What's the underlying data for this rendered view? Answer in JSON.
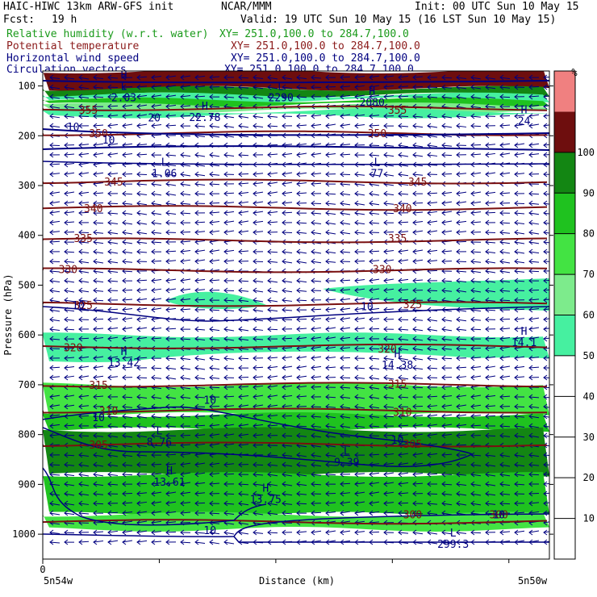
{
  "header": {
    "model": "HAIC-HIWC 13km ARW-GFS init",
    "org": "NCAR/MMM",
    "init": "Init: 00 UTC Sun 10 May 15",
    "fcst_label": "Fcst:",
    "fcst_value": "19 h",
    "valid": "Valid: 19 UTC Sun 10 May 15 (16 LST Sun 10 May 15)",
    "fields": [
      {
        "name": "Relative humidity (w.r.t. water)",
        "xy": "XY= 251.0,100.0 to 284.7,100.0",
        "color": "#1a9a1a"
      },
      {
        "name": "Potential temperature",
        "xy": "XY= 251.0,100.0 to 284.7,100.0",
        "color": "#8b1a1a"
      },
      {
        "name": "Horizontal wind speed",
        "xy": "XY= 251.0,100.0 to 284.7,100.0",
        "color": "#000080"
      },
      {
        "name": "Circulation vectors",
        "xy": "XY= 251.0,100.0 to 284.7,100.0",
        "color": "#000080"
      }
    ]
  },
  "chart_data": {
    "type": "heatmap",
    "xlabel": "Distance (km)",
    "ylabel": "Pressure (hPa)",
    "x_tick_label": "0",
    "x_left_label": "5n54w",
    "x_right_label": "5n50w",
    "y_ticks": [
      100,
      200,
      300,
      400,
      500,
      600,
      700,
      800,
      900,
      1000
    ],
    "ylim": [
      1050,
      70
    ],
    "colorbar": {
      "unit": "%",
      "ticks": [
        10,
        20,
        30,
        40,
        50,
        60,
        70,
        80,
        90,
        100
      ],
      "bands": [
        {
          "from": 0,
          "to": 50,
          "color": "#ffffff"
        },
        {
          "from": 50,
          "to": 60,
          "color": "#46f0a0"
        },
        {
          "from": 60,
          "to": 70,
          "color": "#7deb8c"
        },
        {
          "from": 70,
          "to": 80,
          "color": "#43e343"
        },
        {
          "from": 80,
          "to": 90,
          "color": "#1fc21f"
        },
        {
          "from": 90,
          "to": 100,
          "color": "#138613"
        },
        {
          "from": 100,
          "to": 110,
          "color": "#6e0e0e"
        },
        {
          "from": 110,
          "to": 120,
          "color": "#f08080"
        }
      ]
    },
    "rh_layers": [
      {
        "p_top": 70,
        "p_bot": 105,
        "color": "#6e0e0e"
      },
      {
        "p_top": 105,
        "p_bot": 118,
        "color": "#138613"
      },
      {
        "p_top": 118,
        "p_bot": 128,
        "color": "#46f0a0"
      },
      {
        "p_top": 128,
        "p_bot": 138,
        "color": "#1fc21f"
      },
      {
        "p_top": 138,
        "p_bot": 150,
        "color": "#7deb8c"
      },
      {
        "p_top": 150,
        "p_bot": 160,
        "color": "#46f0a0"
      },
      {
        "p_top": 600,
        "p_bot": 650,
        "color": "#46f0a0"
      },
      {
        "p_top": 700,
        "p_bot": 760,
        "color": "#43e343"
      },
      {
        "p_top": 760,
        "p_bot": 790,
        "color": "#1fc21f"
      },
      {
        "p_top": 790,
        "p_bot": 880,
        "color": "#138613"
      },
      {
        "p_top": 880,
        "p_bot": 960,
        "color": "#1fc21f"
      },
      {
        "p_top": 960,
        "p_bot": 990,
        "color": "#43e343"
      }
    ],
    "theta_isolines": [
      {
        "value": 355,
        "p": 145
      },
      {
        "value": 350,
        "p": 195
      },
      {
        "value": 345,
        "p": 292
      },
      {
        "value": 340,
        "p": 345
      },
      {
        "value": 335,
        "p": 410
      },
      {
        "value": 330,
        "p": 470
      },
      {
        "value": 325,
        "p": 538
      },
      {
        "value": 320,
        "p": 623
      },
      {
        "value": 315,
        "p": 700
      },
      {
        "value": 310,
        "p": 752
      },
      {
        "value": 305,
        "p": 820
      },
      {
        "value": 300,
        "p": 975
      }
    ],
    "theta_labels": [
      {
        "text": "355",
        "x": 0.09,
        "p": 148
      },
      {
        "text": "355",
        "x": 0.7,
        "p": 148
      },
      {
        "text": "350",
        "x": 0.11,
        "p": 195
      },
      {
        "text": "350",
        "x": 0.66,
        "p": 195
      },
      {
        "text": "345",
        "x": 0.14,
        "p": 292
      },
      {
        "text": "345",
        "x": 0.74,
        "p": 292
      },
      {
        "text": "340",
        "x": 0.1,
        "p": 345
      },
      {
        "text": "340",
        "x": 0.71,
        "p": 345
      },
      {
        "text": "335",
        "x": 0.08,
        "p": 405
      },
      {
        "text": "335",
        "x": 0.7,
        "p": 405
      },
      {
        "text": "330",
        "x": 0.05,
        "p": 468
      },
      {
        "text": "330",
        "x": 0.67,
        "p": 468
      },
      {
        "text": "325",
        "x": 0.08,
        "p": 540
      },
      {
        "text": "325",
        "x": 0.73,
        "p": 538
      },
      {
        "text": "320",
        "x": 0.06,
        "p": 625
      },
      {
        "text": "320",
        "x": 0.68,
        "p": 627
      },
      {
        "text": "315",
        "x": 0.11,
        "p": 700
      },
      {
        "text": "315",
        "x": 0.7,
        "p": 698
      },
      {
        "text": "310",
        "x": 0.13,
        "p": 752
      },
      {
        "text": "310",
        "x": 0.71,
        "p": 754
      },
      {
        "text": "305",
        "x": 0.11,
        "p": 820
      },
      {
        "text": "305",
        "x": 0.73,
        "p": 818
      },
      {
        "text": "300",
        "x": 0.73,
        "p": 960
      },
      {
        "text": "300",
        "x": 0.9,
        "p": 960
      }
    ],
    "wind_labels": [
      {
        "text": "10",
        "x": 0.06,
        "p": 182
      },
      {
        "text": "20",
        "x": 0.22,
        "p": 163
      },
      {
        "text": "10",
        "x": 0.13,
        "p": 208
      },
      {
        "text": "10",
        "x": 0.07,
        "p": 540
      },
      {
        "text": "10",
        "x": 0.64,
        "p": 542
      },
      {
        "text": "10",
        "x": 0.11,
        "p": 765
      },
      {
        "text": "10",
        "x": 0.33,
        "p": 730
      },
      {
        "text": "10",
        "x": 0.7,
        "p": 810
      },
      {
        "text": "10",
        "x": 0.9,
        "p": 960
      },
      {
        "text": "10",
        "x": 0.33,
        "p": 992
      }
    ],
    "extrema": [
      {
        "kind": "H",
        "value": "",
        "x": 0.16,
        "p": 85
      },
      {
        "kind": "L",
        "value": "2.03",
        "x": 0.16,
        "p": 108
      },
      {
        "kind": "L",
        "value": "2290",
        "x": 0.47,
        "p": 108
      },
      {
        "kind": "H",
        "value": "2080",
        "x": 0.65,
        "p": 118
      },
      {
        "kind": "H",
        "value": "22.78",
        "x": 0.32,
        "p": 148
      },
      {
        "kind": "H",
        "value": "24",
        "x": 0.95,
        "p": 155
      },
      {
        "kind": "L",
        "value": "1.06",
        "x": 0.24,
        "p": 260
      },
      {
        "kind": "L",
        "value": "77",
        "x": 0.66,
        "p": 260
      },
      {
        "kind": "H",
        "value": "13.42",
        "x": 0.16,
        "p": 640
      },
      {
        "kind": "H",
        "value": "14.38",
        "x": 0.7,
        "p": 645
      },
      {
        "kind": "H",
        "value": "14.1",
        "x": 0.95,
        "p": 600
      },
      {
        "kind": "L",
        "value": "8.76",
        "x": 0.23,
        "p": 800
      },
      {
        "kind": "L",
        "value": "9.39",
        "x": 0.6,
        "p": 840
      },
      {
        "kind": "H",
        "value": "13.61",
        "x": 0.25,
        "p": 880
      },
      {
        "kind": "H",
        "value": "13.75",
        "x": 0.44,
        "p": 915
      },
      {
        "kind": "L",
        "value": "299.3",
        "x": 0.81,
        "p": 1005
      }
    ]
  }
}
